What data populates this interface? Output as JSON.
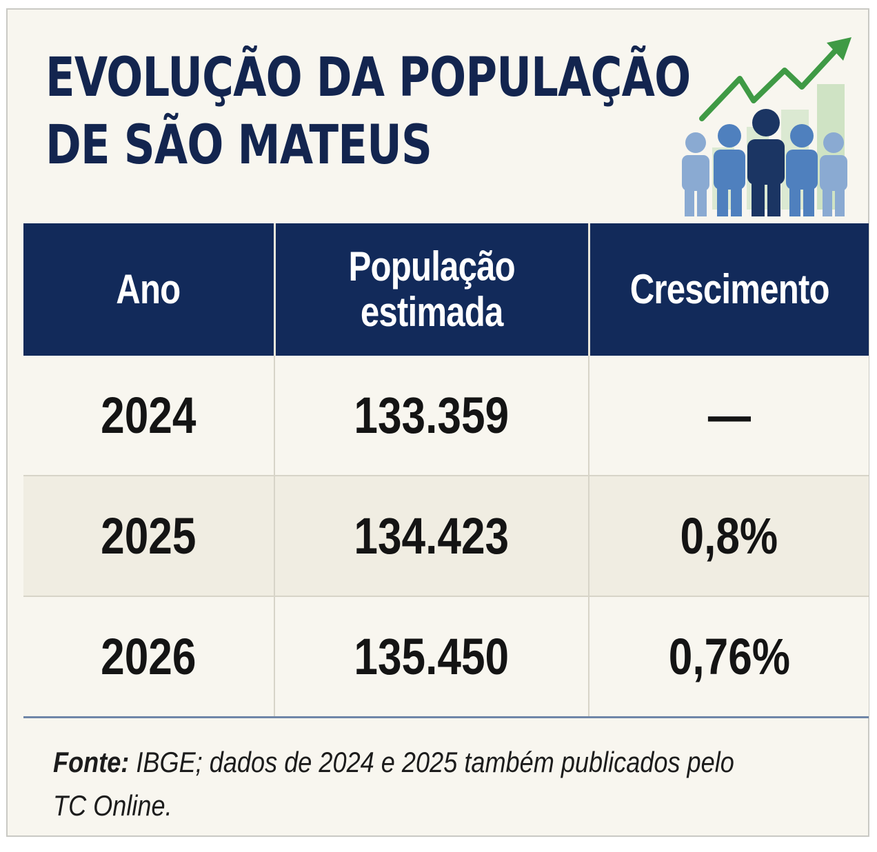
{
  "title": {
    "line1": "EVOLUÇÃO DA POPULAÇÃO",
    "line2": "DE SÃO MATEUS"
  },
  "chart_data": {
    "type": "table",
    "columns": [
      "Ano",
      "População estimada",
      "Crescimento"
    ],
    "header": {
      "col1": "Ano",
      "col2_line1": "População",
      "col2_line2": "estimada",
      "col3": "Crescimento"
    },
    "rows": [
      {
        "ano": "2024",
        "populacao": "133.359",
        "crescimento": "—"
      },
      {
        "ano": "2025",
        "populacao": "134.423",
        "crescimento": "0,8%"
      },
      {
        "ano": "2026",
        "populacao": "135.450",
        "crescimento": "0,76%"
      }
    ]
  },
  "source": {
    "label": "Fonte:",
    "text": " IBGE; dados de 2024 e 2025 também publicados pelo TC Online."
  },
  "colors": {
    "header_bg": "#122a5a",
    "title": "#13254f",
    "row_alt": "#f0ede2",
    "card_bg": "#f8f6ef",
    "arrow": "#3f9a45"
  },
  "icons": {
    "illustration": "population-growth-icon"
  }
}
